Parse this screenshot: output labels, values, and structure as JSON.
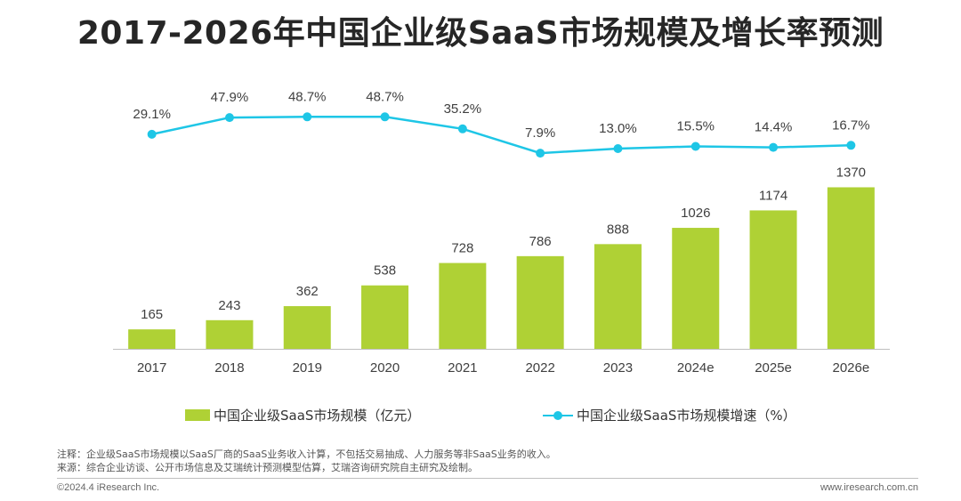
{
  "title": "2017-2026年中国企业级SaaS市场规模及增长率预测",
  "colors": {
    "bar": "#afd135",
    "line": "#1ec6e6",
    "axis": "#bfbfbf",
    "text": "#404040"
  },
  "chart_data": {
    "type": "bar+line",
    "title": "2017-2026年中国企业级SaaS市场规模及增长率预测",
    "categories": [
      "2017",
      "2018",
      "2019",
      "2020",
      "2021",
      "2022",
      "2023",
      "2024e",
      "2025e",
      "2026e"
    ],
    "series": [
      {
        "name": "中国企业级SaaS市场规模（亿元）",
        "type": "bar",
        "values": [
          165,
          243,
          362,
          538,
          728,
          786,
          888,
          1026,
          1174,
          1370
        ],
        "labels": [
          "165",
          "243",
          "362",
          "538",
          "728",
          "786",
          "888",
          "1026",
          "1174",
          "1370"
        ]
      },
      {
        "name": "中国企业级SaaS市场规模增速（%）",
        "type": "line",
        "values": [
          29.1,
          47.9,
          48.7,
          48.7,
          35.2,
          7.9,
          13.0,
          15.5,
          14.4,
          16.7
        ],
        "labels": [
          "29.1%",
          "47.9%",
          "48.7%",
          "48.7%",
          "35.2%",
          "7.9%",
          "13.0%",
          "15.5%",
          "14.4%",
          "16.7%"
        ]
      }
    ],
    "bar_ylim": [
      0,
      1600
    ],
    "line_ylim": [
      -250,
      80
    ],
    "legend_position": "bottom"
  },
  "legend": {
    "bar_label": "中国企业级SaaS市场规模（亿元）",
    "line_label": "中国企业级SaaS市场规模增速（%）"
  },
  "notes": {
    "note": "注释：企业级SaaS市场规模以SaaS厂商的SaaS业务收入计算，不包括交易抽成、人力服务等非SaaS业务的收入。",
    "source": "来源：综合企业访谈、公开市场信息及艾瑞统计预测模型估算，艾瑞咨询研究院自主研究及绘制。"
  },
  "footer": {
    "copyright": "©2024.4 iResearch Inc.",
    "website": "www.iresearch.com.cn"
  }
}
